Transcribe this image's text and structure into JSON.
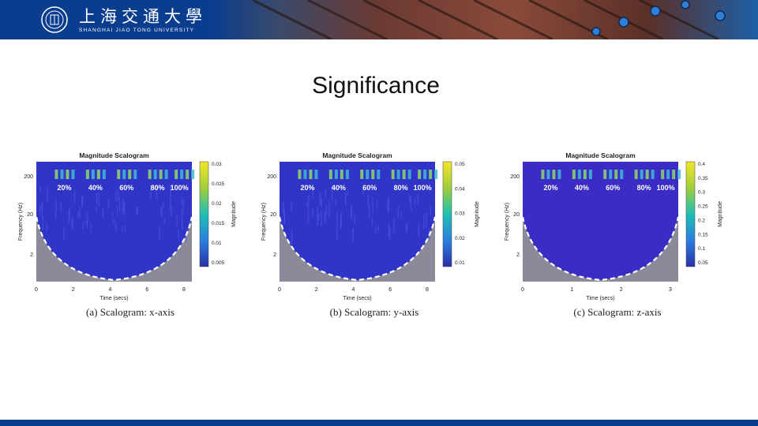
{
  "header": {
    "logo_icon": "university-seal-icon",
    "name_cn": "上海交通大學",
    "name_en": "SHANGHAI JIAO TONG UNIVERSITY",
    "bar_color": "#0b3d8f"
  },
  "slide": {
    "title": "Significance"
  },
  "colorbar_label": "Magnitude",
  "chart_data": [
    {
      "type": "heatmap",
      "title": "Magnitude Scalogram",
      "xlabel": "Time (secs)",
      "ylabel": "Frequency (Hz)",
      "x_ticks": [
        "0",
        "2",
        "4",
        "6",
        "8"
      ],
      "y_ticks": [
        "200",
        "20",
        "2"
      ],
      "colorbar_ticks": [
        "0.03",
        "0.025",
        "0.02",
        "0.015",
        "0.01",
        "0.005"
      ],
      "annotations": [
        "20%",
        "40%",
        "60%",
        "80%",
        "100%"
      ],
      "caption": "(a)  Scalogram:  x-axis"
    },
    {
      "type": "heatmap",
      "title": "Magnitude Scalogram",
      "xlabel": "Time (secs)",
      "ylabel": "Frequency (Hz)",
      "x_ticks": [
        "0",
        "2",
        "4",
        "6",
        "8"
      ],
      "y_ticks": [
        "200",
        "20",
        "2"
      ],
      "colorbar_ticks": [
        "0.05",
        "0.04",
        "0.03",
        "0.02",
        "0.01"
      ],
      "annotations": [
        "20%",
        "40%",
        "60%",
        "80%",
        "100%"
      ],
      "caption": "(b)  Scalogram:  y-axis"
    },
    {
      "type": "heatmap",
      "title": "Magnitude Scalogram",
      "xlabel": "Time (secs)",
      "ylabel": "Frequency (Hz)",
      "x_ticks": [
        "0",
        "1",
        "2",
        "3"
      ],
      "y_ticks": [
        "200",
        "20",
        "2"
      ],
      "colorbar_ticks": [
        "0.4",
        "0.35",
        "0.3",
        "0.25",
        "0.2",
        "0.15",
        "0.1",
        "0.05"
      ],
      "annotations": [
        "20%",
        "40%",
        "60%",
        "80%",
        "100%"
      ],
      "caption": "(c)  Scalogram:  z-axis"
    }
  ]
}
